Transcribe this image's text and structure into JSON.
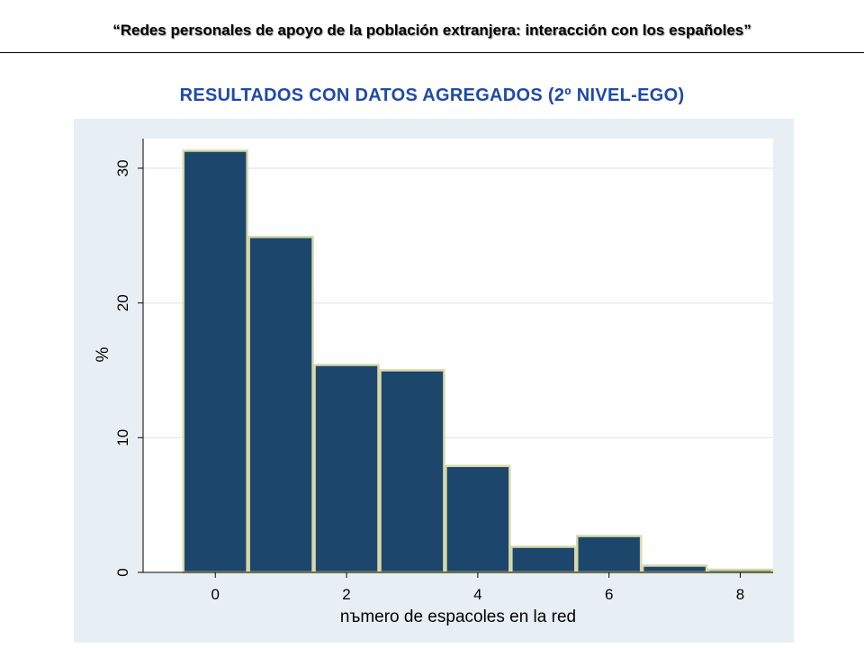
{
  "header": {
    "title": "“Redes personales de apoyo de la población extranjera: interacción con los españoles”",
    "subtitle": "RESULTADOS CON DATOS AGREGADOS (2º NIVEL-EGO)"
  },
  "chart_data": {
    "type": "bar",
    "title": "",
    "xlabel": "nъmero de espacoles en la red",
    "ylabel": "%",
    "categories": [
      "0",
      "1",
      "2",
      "3",
      "4",
      "5",
      "6",
      "7",
      "8"
    ],
    "x": [
      0,
      1,
      2,
      3,
      4,
      5,
      6,
      7,
      8
    ],
    "values": [
      31.3,
      24.9,
      15.4,
      15.0,
      7.9,
      1.9,
      2.7,
      0.5,
      0.2
    ],
    "xlim": [
      -1.1,
      8.5
    ],
    "ylim": [
      0,
      32.2
    ],
    "xticks": [
      "0",
      "2",
      "4",
      "6",
      "8"
    ],
    "yticks": [
      "0",
      "10",
      "20",
      "30"
    ],
    "grid": true,
    "legend": "none",
    "colors": {
      "bar_fill": "#1d466d",
      "bar_edge": "#d8d9a8",
      "plot_bg": "#ffffff",
      "outer_bg": "#e8eff4",
      "grid": "#e4ebef"
    }
  }
}
